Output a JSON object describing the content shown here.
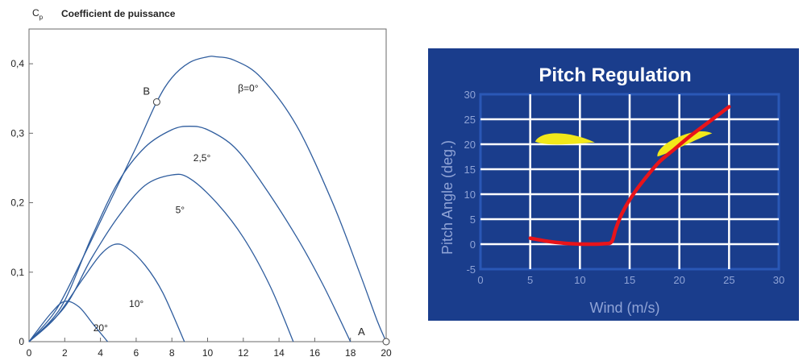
{
  "chart_data": [
    {
      "type": "line",
      "title": "Coefficient de puissance",
      "ylabel": "C",
      "ylabel_sub": "p",
      "xlabel": "",
      "xlim": [
        0,
        20
      ],
      "ylim": [
        0,
        0.45
      ],
      "x_ticks": [
        0,
        2,
        4,
        6,
        8,
        10,
        12,
        14,
        16,
        18,
        20
      ],
      "x_tick_labels": [
        "0",
        "2",
        "4",
        "6",
        "8",
        "10",
        "12",
        "14",
        "16",
        "18",
        "20"
      ],
      "y_ticks": [
        0,
        0.1,
        0.2,
        0.3,
        0.4
      ],
      "y_tick_labels": [
        "0",
        "0,1",
        "0,2",
        "0,3",
        "0,4"
      ],
      "grid": false,
      "series": [
        {
          "name": "β=0°",
          "points": [
            [
              0,
              0
            ],
            [
              1.5,
              0.045
            ],
            [
              3,
              0.12
            ],
            [
              4.5,
              0.2
            ],
            [
              6,
              0.28
            ],
            [
              7.15,
              0.345
            ],
            [
              8,
              0.38
            ],
            [
              9,
              0.402
            ],
            [
              10,
              0.41
            ],
            [
              10.5,
              0.41
            ],
            [
              11.5,
              0.405
            ],
            [
              13,
              0.38
            ],
            [
              15,
              0.31
            ],
            [
              17,
              0.2
            ],
            [
              18.5,
              0.1
            ],
            [
              19.5,
              0.03
            ],
            [
              20,
              0
            ]
          ]
        },
        {
          "name": "2,5°",
          "points": [
            [
              0,
              0
            ],
            [
              1.8,
              0.05
            ],
            [
              3.5,
              0.15
            ],
            [
              5,
              0.23
            ],
            [
              6.5,
              0.28
            ],
            [
              8,
              0.305
            ],
            [
              9,
              0.31
            ],
            [
              10,
              0.305
            ],
            [
              11.5,
              0.28
            ],
            [
              13,
              0.23
            ],
            [
              15,
              0.15
            ],
            [
              16.5,
              0.08
            ],
            [
              18,
              0
            ]
          ]
        },
        {
          "name": "5°",
          "points": [
            [
              0,
              0
            ],
            [
              2,
              0.05
            ],
            [
              3.5,
              0.12
            ],
            [
              5,
              0.18
            ],
            [
              6.5,
              0.225
            ],
            [
              8,
              0.24
            ],
            [
              9,
              0.235
            ],
            [
              10.5,
              0.2
            ],
            [
              12,
              0.15
            ],
            [
              13.5,
              0.08
            ],
            [
              14.8,
              0
            ]
          ]
        },
        {
          "name": "10°",
          "points": [
            [
              0,
              0
            ],
            [
              1.5,
              0.035
            ],
            [
              3,
              0.09
            ],
            [
              4,
              0.125
            ],
            [
              4.8,
              0.14
            ],
            [
              5.5,
              0.135
            ],
            [
              6.5,
              0.11
            ],
            [
              7.5,
              0.07
            ],
            [
              8.7,
              0
            ]
          ]
        },
        {
          "name": "20°",
          "points": [
            [
              0,
              0
            ],
            [
              1.2,
              0.04
            ],
            [
              2,
              0.058
            ],
            [
              2.8,
              0.05
            ],
            [
              3.6,
              0.025
            ],
            [
              4.4,
              0
            ]
          ]
        }
      ],
      "annotations": [
        {
          "label": "B",
          "x": 7.15,
          "y": 0.345
        },
        {
          "label": "A",
          "x": 20,
          "y": 0
        }
      ],
      "line_color": "#2f5d9e"
    },
    {
      "type": "line",
      "title": "Pitch Regulation",
      "xlabel": "Wind (m/s)",
      "ylabel": "Pitch Angle (deg.)",
      "xlim": [
        0,
        30
      ],
      "ylim": [
        -5,
        30
      ],
      "x_ticks": [
        0,
        5,
        10,
        15,
        20,
        25,
        30
      ],
      "x_tick_labels": [
        "0",
        "5",
        "10",
        "15",
        "20",
        "25",
        "30"
      ],
      "y_ticks": [
        -5,
        0,
        5,
        10,
        15,
        20,
        25,
        30
      ],
      "y_tick_labels": [
        "-5",
        "0",
        "5",
        "10",
        "15",
        "20",
        "25",
        "30"
      ],
      "grid": true,
      "series": [
        {
          "name": "",
          "points": [
            [
              5,
              1.2
            ],
            [
              7,
              0.5
            ],
            [
              9,
              0.1
            ],
            [
              11,
              0
            ],
            [
              12.5,
              0.1
            ],
            [
              13.2,
              0.5
            ],
            [
              13.6,
              3
            ],
            [
              14.2,
              6
            ],
            [
              15.2,
              9.5
            ],
            [
              16.5,
              13
            ],
            [
              18,
              16.5
            ],
            [
              19.5,
              19
            ],
            [
              21,
              21.5
            ],
            [
              23,
              24.5
            ],
            [
              25,
              27.5
            ]
          ]
        }
      ],
      "background_color": "#1a3d8c",
      "frame_color": "#2a58b6",
      "grid_color": "#ffffff",
      "line_color": "#e8141a",
      "blade_color": "#f2e81a",
      "title_color": "#ffffff",
      "tick_color": "#8fa3d6"
    }
  ]
}
